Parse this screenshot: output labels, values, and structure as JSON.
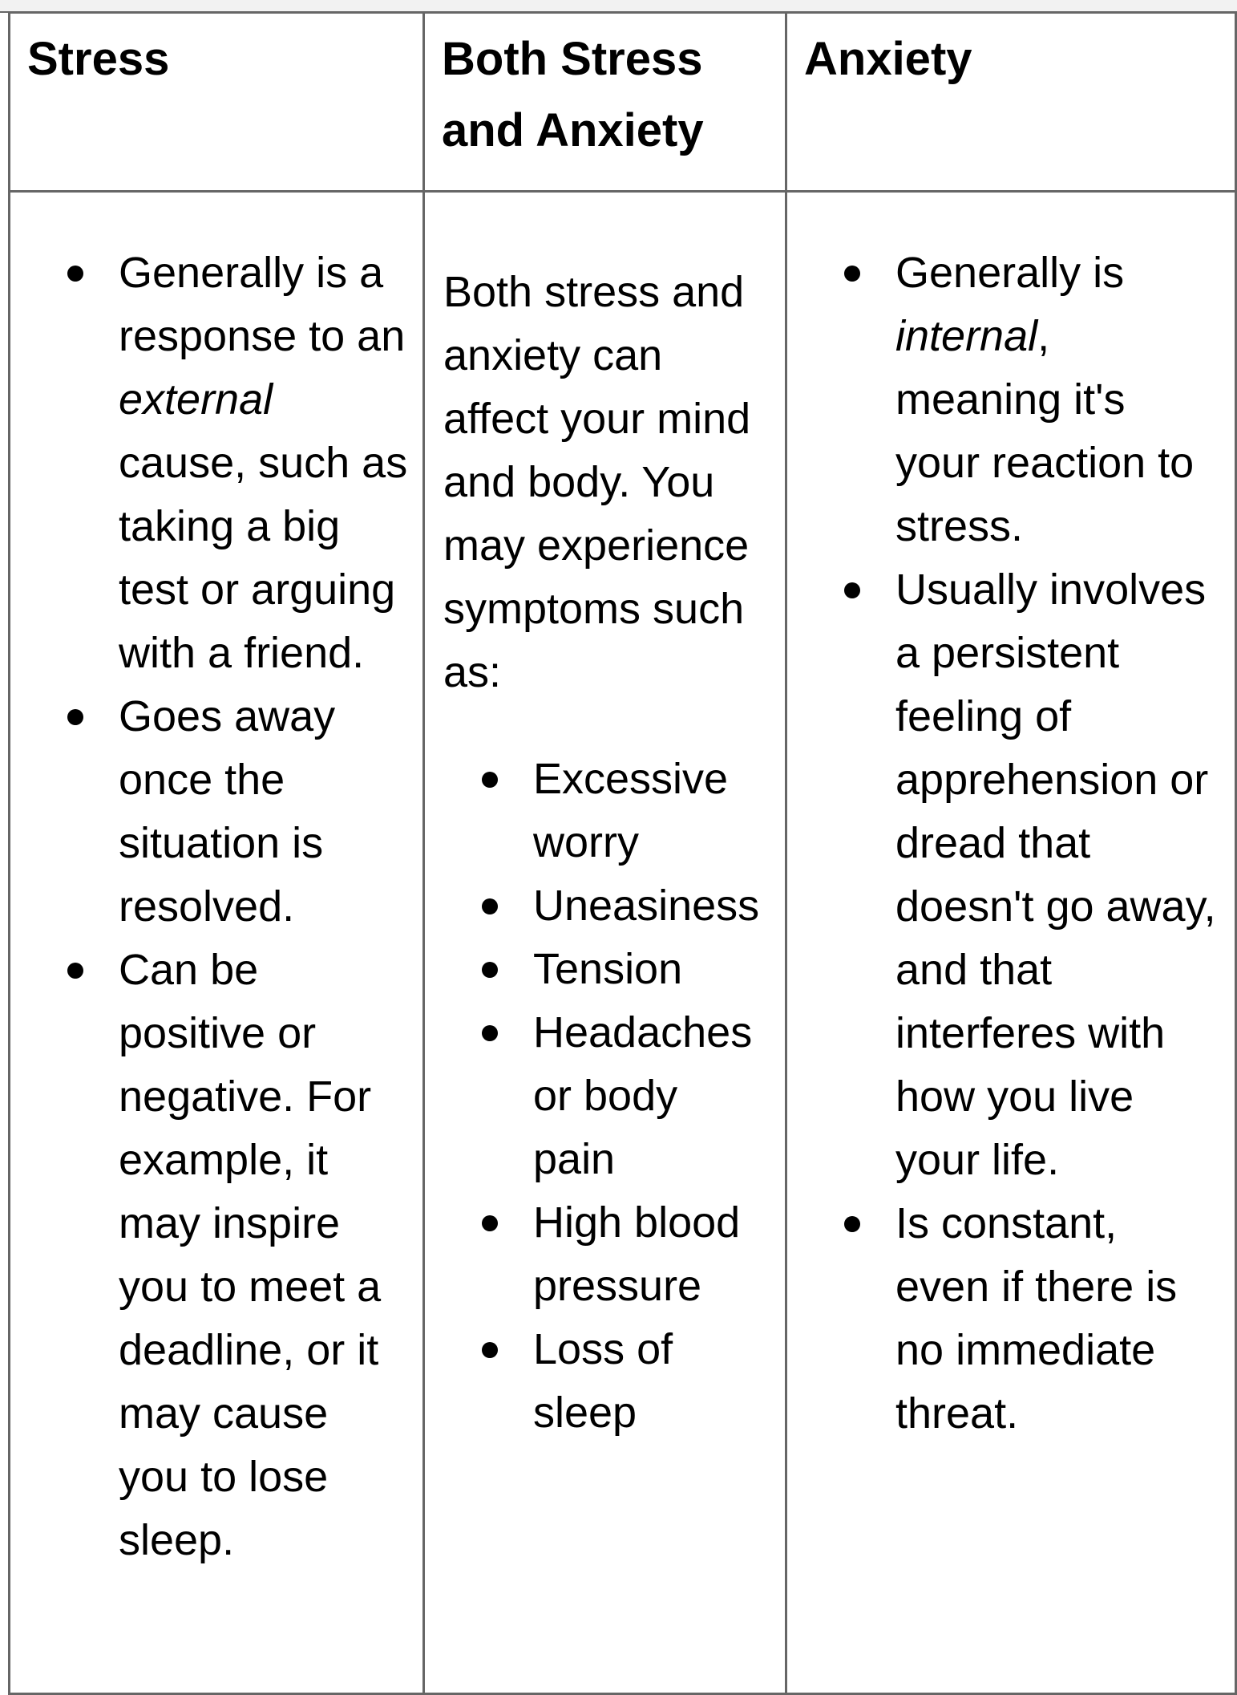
{
  "headers": {
    "stress": "Stress",
    "both": "Both Stress and Anxiety",
    "anxiety": "Anxiety"
  },
  "stress": {
    "items": [
      {
        "pre": "Generally is a response to an ",
        "em": "external",
        "post": " cause, such as taking a big test or arguing with a friend."
      },
      {
        "text": "Goes away once the situation is resolved."
      },
      {
        "text": "Can be positive or negative. For example, it may inspire you to meet a deadline, or it may cause you to lose sleep."
      }
    ]
  },
  "both": {
    "intro": "Both stress and anxiety can affect your mind and body. You may experience symptoms such as:",
    "items": [
      "Excessive worry",
      "Uneasiness",
      "Tension",
      "Headaches or body pain",
      "High blood pressure",
      "Loss of sleep"
    ]
  },
  "anxiety": {
    "items": [
      {
        "pre": "Generally is ",
        "em": "internal",
        "post": ", meaning it's your reaction to stress."
      },
      {
        "text": "Usually involves a persistent feeling of apprehension or dread that doesn't go away, and that interferes with how you live your life."
      },
      {
        "text": "Is constant, even if there is no immediate threat."
      }
    ]
  },
  "colors": {
    "border": "#666666",
    "text": "#000000",
    "background": "#ffffff"
  }
}
